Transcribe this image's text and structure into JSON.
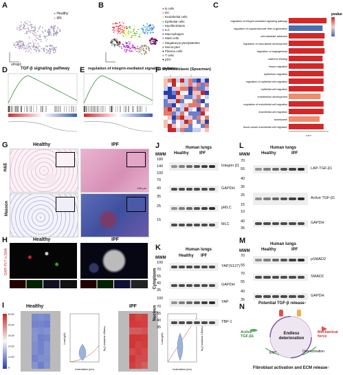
{
  "panels": {
    "A": {
      "label": "A",
      "legend": [
        "Healthy",
        "IPF"
      ],
      "axis_x": "umap1",
      "axis_y": "umap2",
      "colors": {
        "healthy": "#8a8fb0",
        "ipf": "#c9a3c6"
      }
    },
    "B": {
      "label": "B",
      "legend": [
        "B cells",
        "DC",
        "Endothelial cells",
        "Epithelial cells",
        "Myofibroblasts",
        "ILC",
        "Macrophages",
        "Mast cells",
        "Megakaryocytes/platelets",
        "Monocytes",
        "Plasma cells",
        "T cells",
        "pDC"
      ],
      "colors": [
        "#e6194b",
        "#f58231",
        "#ffe119",
        "#3cb44b",
        "#42d4f4",
        "#4363d8",
        "#911eb4",
        "#f032e6",
        "#a9a9a9",
        "#9a6324",
        "#800000",
        "#469990",
        "#000075"
      ]
    },
    "C": {
      "label": "C",
      "legend_title": "pvalue",
      "x_label": "NES",
      "terms": [
        "regulation of integrin-mediated signaling pathway",
        "regulation of supramolecular fiber organization",
        "cell-substrate adhesion",
        "regulation of vasculature development",
        "regulation of angiogenesis",
        "cadherin binding",
        "tissue migration",
        "epithelium migration",
        "regulation of epithelial cell migration",
        "epithelial cell migration",
        "endothelium development",
        "regulation of endothelial cell migration",
        "endothelial cell migration",
        "actomyosin",
        "blood vessel endothelial cell migration"
      ],
      "nes": [
        1.9,
        1.7,
        1.8,
        1.75,
        1.8,
        1.7,
        1.75,
        1.75,
        1.75,
        1.75,
        1.6,
        1.75,
        1.75,
        1.55,
        1.75
      ],
      "bar_colors": [
        "#d62728",
        "#4a6fb5",
        "#d62728",
        "#d62728",
        "#d62728",
        "#d62728",
        "#d62728",
        "#d62728",
        "#d62728",
        "#d62728",
        "#f08b6e",
        "#d62728",
        "#d62728",
        "#f08b6e",
        "#d62728"
      ]
    },
    "D": {
      "label": "D",
      "title": "TGF-β signaling pathway"
    },
    "E": {
      "label": "E",
      "title": "regulation of integrin-mediated signaling pathway"
    },
    "F": {
      "label": "F",
      "title": "Myofibroblasts (Spearman)"
    },
    "G": {
      "label": "G",
      "healthy": "Healthy",
      "ipf": "IPF",
      "row1": "H&E",
      "row2": "Masson",
      "scale": "100 μm"
    },
    "H": {
      "label": "H",
      "healthy": "Healthy",
      "ipf": "IPF",
      "stain": "DAPI PVT α-SMA"
    },
    "I": {
      "label": "I",
      "healthy": "Healthy",
      "ipf": "IPF",
      "xlabel": "Indentation (nm)",
      "ylabel": "Load (μN)",
      "y2label": "Young's modulus (Pa)",
      "colorbar": [
        "5×10⁴",
        "4×10⁴",
        "3×10⁴",
        "2×10⁴",
        "1×10⁴",
        "0"
      ]
    },
    "J": {
      "label": "J",
      "header": "Human lungs",
      "mwm": "MWM",
      "groups": [
        "Healthy",
        "IPF"
      ],
      "markers": [
        "180",
        "140",
        "100",
        "70",
        "40",
        "35",
        "25",
        "15"
      ],
      "proteins": [
        "Integrin β1",
        "GAPDH",
        "pMLC",
        "MLC"
      ]
    },
    "K": {
      "label": "K",
      "header": "Human lungs",
      "mwm": "MWM",
      "groups": [
        "Healthy",
        "IPF"
      ],
      "markers": [
        "100",
        "70",
        "55",
        "40",
        "35",
        "100",
        "70",
        "55",
        "40",
        "35"
      ],
      "proteins": [
        "YAP(S127)",
        "GAPDH",
        "YAP",
        "TBP-1"
      ],
      "side": [
        "Cytoplasm",
        "Nucleus"
      ]
    },
    "L": {
      "label": "L",
      "header": "Human lungs",
      "mwm": "MWM",
      "groups": [
        "Healthy",
        "IPF"
      ],
      "markers": [
        "70",
        "55",
        "40",
        "35",
        "25",
        "15",
        "10",
        "40",
        "35"
      ],
      "proteins": [
        "LAP-TGF-β1",
        "Active TGF-β1",
        "GAPDH"
      ]
    },
    "M": {
      "label": "M",
      "header": "Human lungs",
      "mwm": "MWM",
      "groups": [
        "Healthy",
        "IPF"
      ],
      "markers": [
        "70",
        "55",
        "70",
        "55",
        "40",
        "35"
      ],
      "proteins": [
        "pSMAD2",
        "SMAD2",
        "GAPDH"
      ]
    },
    "N": {
      "label": "N",
      "top": "Potential TGF-β release↑",
      "left": "Active TGF-β1",
      "center": "Endless deterioration",
      "right": "Mechanical force",
      "bottom": "Fibroblast activation and ECM release↑",
      "emt": "EMT",
      "over": "Overactivation"
    }
  }
}
